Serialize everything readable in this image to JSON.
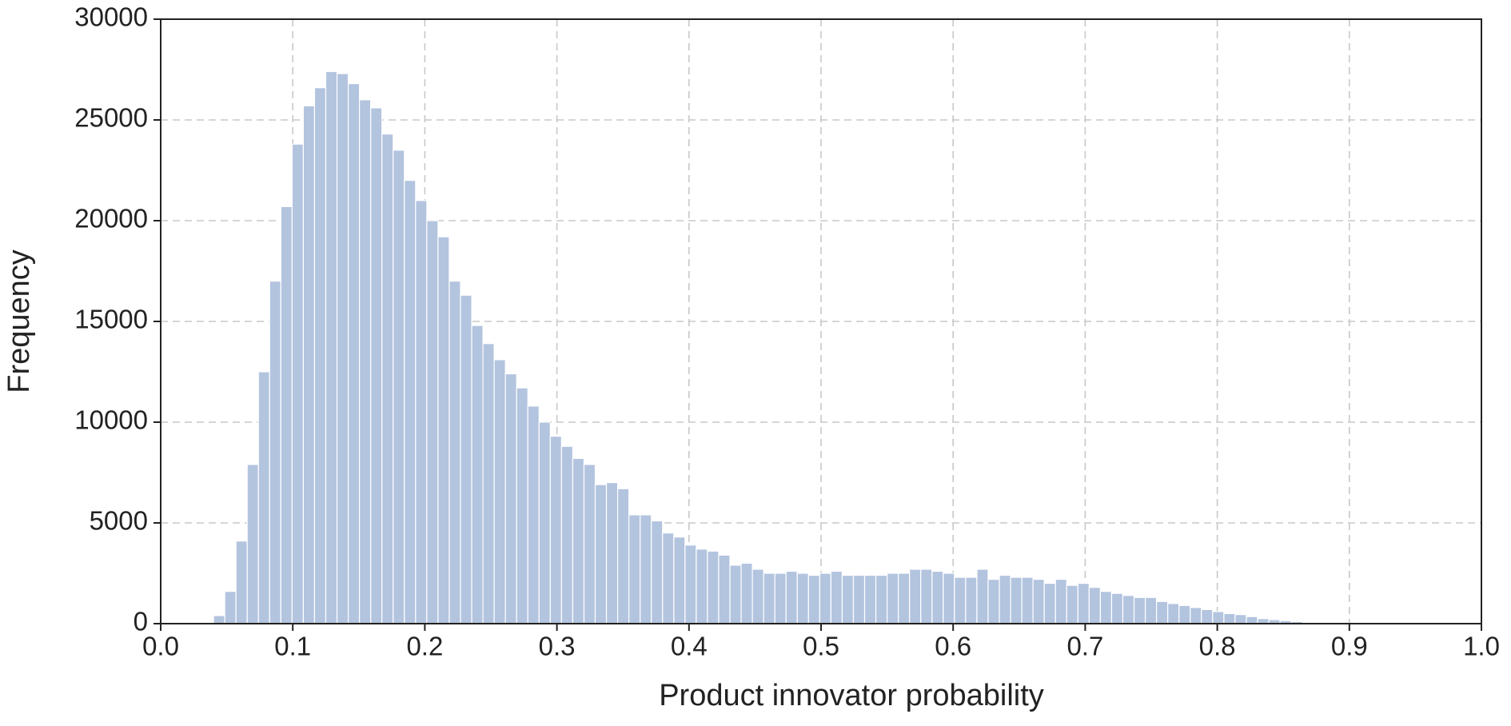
{
  "chart_data": {
    "type": "histogram",
    "xlabel": "Product innovator probability",
    "ylabel": "Frequency",
    "color": "#b3c4df",
    "grid": true,
    "xlim": [
      0,
      1
    ],
    "ylim": [
      0,
      30000
    ],
    "xticks": [
      {
        "value": 0,
        "label": "0.0"
      },
      0.1,
      0.2,
      0.3,
      0.4,
      0.5,
      0.6,
      0.7,
      0.8,
      0.9,
      {
        "value": 1,
        "label": "1.0"
      }
    ],
    "yticks": [
      0,
      5000,
      10000,
      15000,
      20000,
      25000,
      30000
    ],
    "bins": [
      0.04,
      0.0485,
      0.057,
      0.0655,
      0.074,
      0.0825,
      0.091,
      0.0995,
      0.108,
      0.1165,
      0.125,
      0.1335,
      0.142,
      0.1505,
      0.159,
      0.1675,
      0.176,
      0.1845,
      0.193,
      0.2015,
      0.21,
      0.2185,
      0.227,
      0.2355,
      0.244,
      0.2525,
      0.261,
      0.2695,
      0.278,
      0.2865,
      0.295,
      0.3035,
      0.312,
      0.3205,
      0.329,
      0.3375,
      0.346,
      0.3545,
      0.363,
      0.3715,
      0.38,
      0.3885,
      0.397,
      0.4055,
      0.414,
      0.4225,
      0.431,
      0.4395,
      0.448,
      0.4565,
      0.465,
      0.4735,
      0.482,
      0.4905,
      0.499,
      0.5075,
      0.516,
      0.5245,
      0.533,
      0.5415,
      0.55,
      0.5585,
      0.567,
      0.5755,
      0.584,
      0.5925,
      0.601,
      0.6095,
      0.618,
      0.6265,
      0.635,
      0.6435,
      0.652,
      0.6605,
      0.669,
      0.6775,
      0.686,
      0.6945,
      0.703,
      0.7115,
      0.72,
      0.7285,
      0.737,
      0.7455,
      0.754,
      0.7625,
      0.771,
      0.7795,
      0.788,
      0.7965,
      0.805,
      0.8135,
      0.822,
      0.8305,
      0.839,
      0.8475,
      0.856,
      0.8645,
      0.873,
      0.8815,
      0.89
    ],
    "values": [
      400,
      1600,
      4100,
      7900,
      12500,
      17000,
      20700,
      23800,
      25700,
      26600,
      27400,
      27300,
      26800,
      26000,
      25600,
      24300,
      23500,
      22000,
      21000,
      20000,
      19200,
      17000,
      16300,
      14800,
      13900,
      13100,
      12400,
      11700,
      10800,
      10000,
      9300,
      8800,
      8200,
      7900,
      6900,
      7000,
      6700,
      5400,
      5400,
      5100,
      4500,
      4300,
      3900,
      3700,
      3600,
      3400,
      2900,
      3000,
      2700,
      2500,
      2500,
      2600,
      2500,
      2400,
      2500,
      2600,
      2400,
      2400,
      2400,
      2400,
      2500,
      2500,
      2700,
      2700,
      2600,
      2500,
      2300,
      2300,
      2700,
      2200,
      2400,
      2300,
      2300,
      2200,
      2000,
      2200,
      1900,
      2000,
      1800,
      1600,
      1500,
      1400,
      1300,
      1300,
      1100,
      1000,
      900,
      800,
      700,
      600,
      500,
      450,
      350,
      250,
      200,
      150,
      100,
      60,
      30,
      15
    ]
  }
}
